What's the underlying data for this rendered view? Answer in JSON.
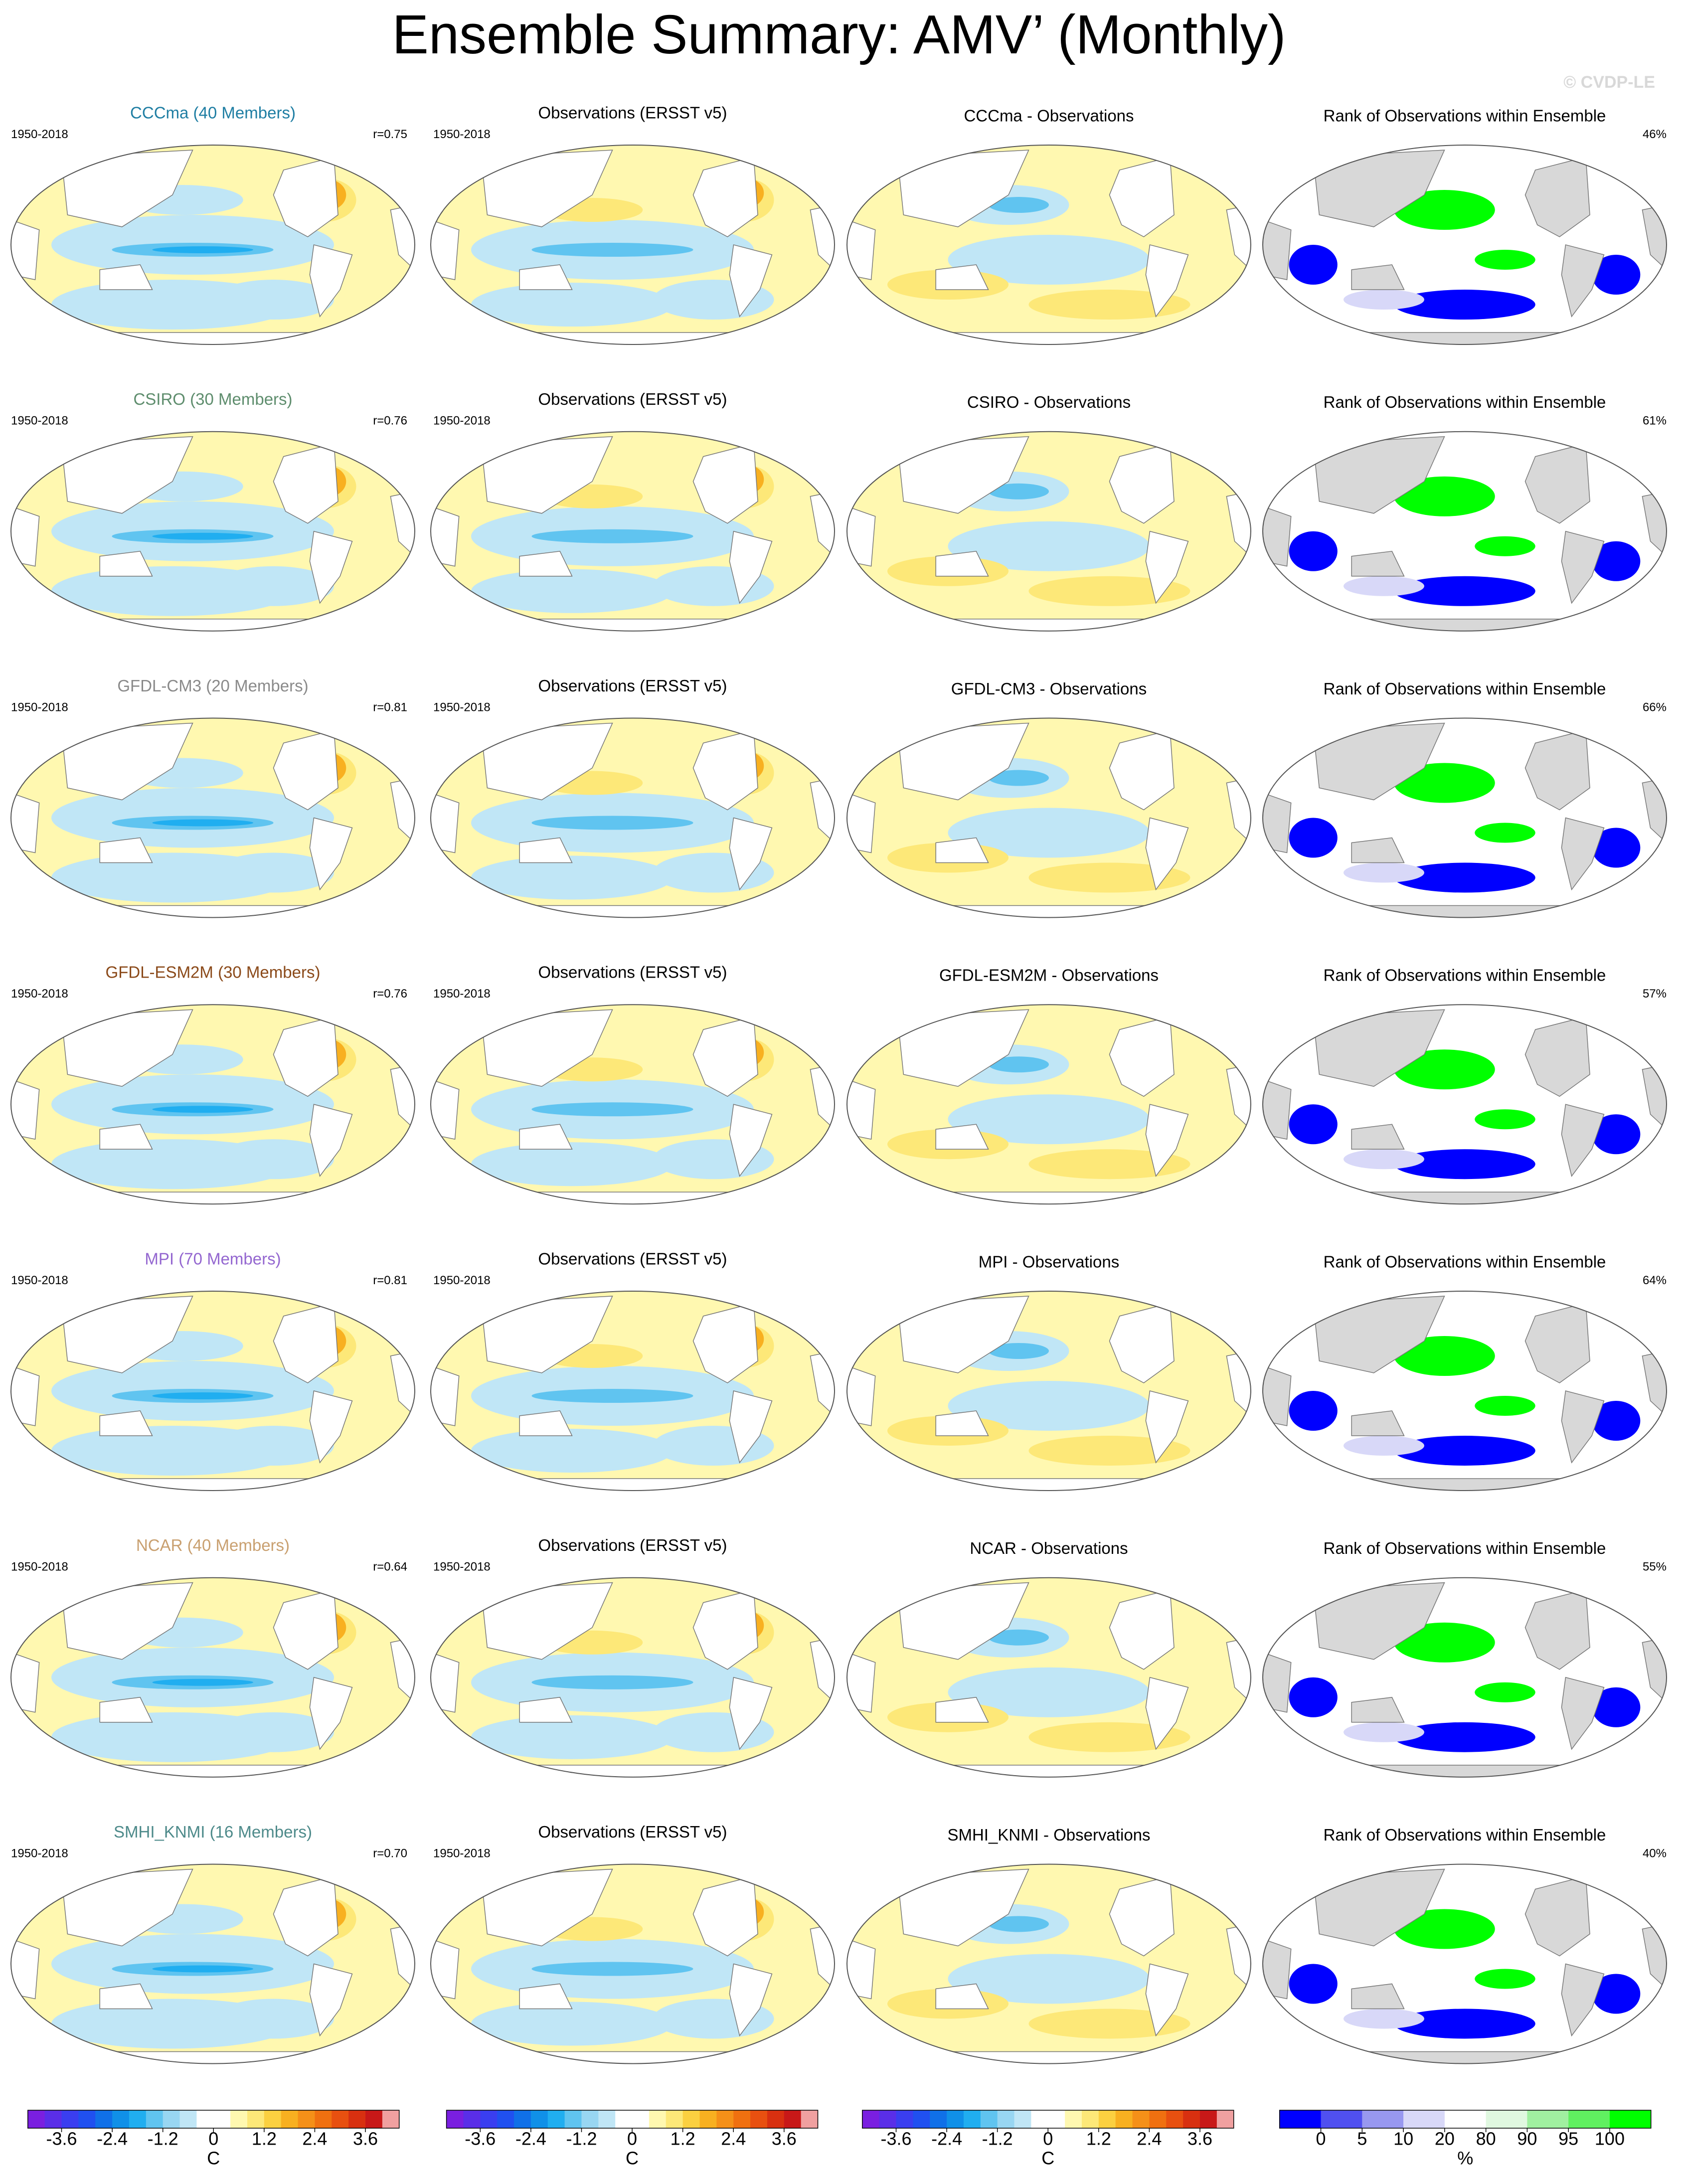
{
  "header": {
    "title": "Ensemble Summary: AMV’ (Monthly)",
    "credit": "© CVDP-LE"
  },
  "rows": [
    {
      "model_title": "CCCma (40 Members)",
      "title_color": "#1f7ea3",
      "period": "1950-2018",
      "r": "r=0.75",
      "obs_title": "Observations (ERSST v5)",
      "obs_period": "1950-2018",
      "diff_title": "CCCma - Observations",
      "rank_title": "Rank of Observations within Ensemble",
      "rank_pct": "46%"
    },
    {
      "model_title": "CSIRO (30 Members)",
      "title_color": "#5e8d6d",
      "period": "1950-2018",
      "r": "r=0.76",
      "obs_title": "Observations (ERSST v5)",
      "obs_period": "1950-2018",
      "diff_title": "CSIRO - Observations",
      "rank_title": "Rank of Observations within Ensemble",
      "rank_pct": "61%"
    },
    {
      "model_title": "GFDL-CM3 (20 Members)",
      "title_color": "#8a8a8a",
      "period": "1950-2018",
      "r": "r=0.81",
      "obs_title": "Observations (ERSST v5)",
      "obs_period": "1950-2018",
      "diff_title": "GFDL-CM3 - Observations",
      "rank_title": "Rank of Observations within Ensemble",
      "rank_pct": "66%"
    },
    {
      "model_title": "GFDL-ESM2M (30 Members)",
      "title_color": "#8b4a1a",
      "period": "1950-2018",
      "r": "r=0.76",
      "obs_title": "Observations (ERSST v5)",
      "obs_period": "1950-2018",
      "diff_title": "GFDL-ESM2M - Observations",
      "rank_title": "Rank of Observations within Ensemble",
      "rank_pct": "57%"
    },
    {
      "model_title": "MPI (70 Members)",
      "title_color": "#9467d0",
      "period": "1950-2018",
      "r": "r=0.81",
      "obs_title": "Observations (ERSST v5)",
      "obs_period": "1950-2018",
      "diff_title": "MPI - Observations",
      "rank_title": "Rank of Observations within Ensemble",
      "rank_pct": "64%"
    },
    {
      "model_title": "NCAR (40 Members)",
      "title_color": "#c9a070",
      "period": "1950-2018",
      "r": "r=0.64",
      "obs_title": "Observations (ERSST v5)",
      "obs_period": "1950-2018",
      "diff_title": "NCAR - Observations",
      "rank_title": "Rank of Observations within Ensemble",
      "rank_pct": "55%"
    },
    {
      "model_title": "SMHI_KNMI (16 Members)",
      "title_color": "#4d8a8a",
      "period": "1950-2018",
      "r": "r=0.70",
      "obs_title": "Observations (ERSST v5)",
      "obs_period": "1950-2018",
      "diff_title": "SMHI_KNMI - Observations",
      "rank_title": "Rank of Observations within Ensemble",
      "rank_pct": "40%"
    }
  ],
  "colorbars": [
    {
      "kind": "temperature",
      "ticks": [
        -3.6,
        -2.4,
        -1.2,
        0,
        1.2,
        2.4,
        3.6
      ],
      "lim": [
        -4.4,
        4.4
      ],
      "unit": "C",
      "colors": [
        "#7a1fe0",
        "#5a2ee8",
        "#3a3ef0",
        "#2050f0",
        "#1070e8",
        "#1090e8",
        "#20aef0",
        "#60c4f0",
        "#98d6f2",
        "#c0e6f6",
        "#ffffff",
        "#ffffff",
        "#fff8b0",
        "#fde878",
        "#fbd040",
        "#f8b020",
        "#f59018",
        "#f07010",
        "#e85010",
        "#d83010",
        "#c81818",
        "#f0a0a0"
      ]
    },
    {
      "kind": "temperature",
      "ticks": [
        -3.6,
        -2.4,
        -1.2,
        0,
        1.2,
        2.4,
        3.6
      ],
      "lim": [
        -4.4,
        4.4
      ],
      "unit": "C",
      "colors": [
        "#7a1fe0",
        "#5a2ee8",
        "#3a3ef0",
        "#2050f0",
        "#1070e8",
        "#1090e8",
        "#20aef0",
        "#60c4f0",
        "#98d6f2",
        "#c0e6f6",
        "#ffffff",
        "#ffffff",
        "#fff8b0",
        "#fde878",
        "#fbd040",
        "#f8b020",
        "#f59018",
        "#f07010",
        "#e85010",
        "#d83010",
        "#c81818",
        "#f0a0a0"
      ]
    },
    {
      "kind": "temperature",
      "ticks": [
        -3.6,
        -2.4,
        -1.2,
        0,
        1.2,
        2.4,
        3.6
      ],
      "lim": [
        -4.4,
        4.4
      ],
      "unit": "C",
      "colors": [
        "#7a1fe0",
        "#5a2ee8",
        "#3a3ef0",
        "#2050f0",
        "#1070e8",
        "#1090e8",
        "#20aef0",
        "#60c4f0",
        "#98d6f2",
        "#c0e6f6",
        "#ffffff",
        "#ffffff",
        "#fff8b0",
        "#fde878",
        "#fbd040",
        "#f8b020",
        "#f59018",
        "#f07010",
        "#e85010",
        "#d83010",
        "#c81818",
        "#f0a0a0"
      ]
    },
    {
      "kind": "rank",
      "ticks": [
        0,
        5,
        10,
        20,
        80,
        90,
        95,
        100
      ],
      "unit": "%",
      "colors": [
        "#0000ff",
        "#5050f0",
        "#9898f0",
        "#d8d8f8",
        "#ffffff",
        "#e0f8e0",
        "#a0f0a0",
        "#60f060",
        "#00ff00"
      ]
    }
  ]
}
